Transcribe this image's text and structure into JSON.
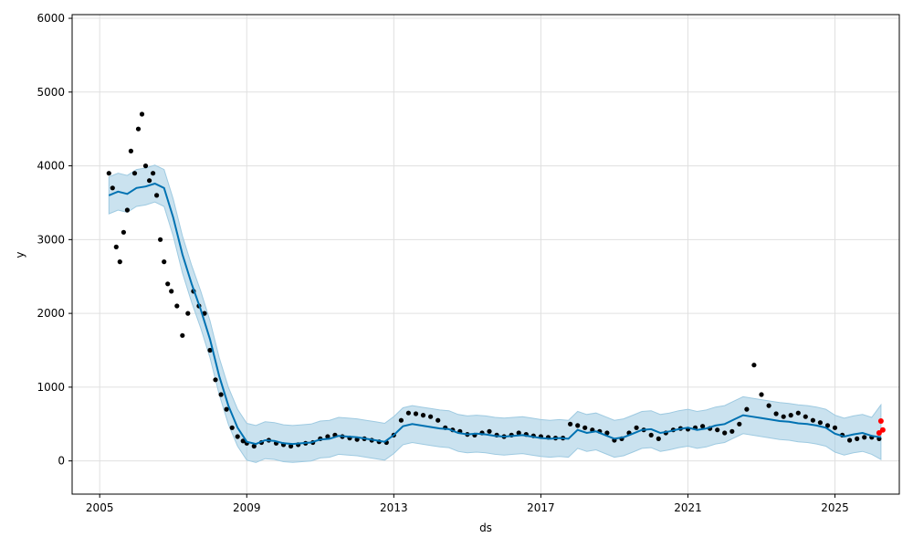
{
  "chart_data": {
    "type": "scatter",
    "title": "",
    "xlabel": "ds",
    "ylabel": "y",
    "xlim": [
      2004.25,
      2026.75
    ],
    "ylim": [
      -450,
      6050
    ],
    "x_ticks": [
      2005,
      2009,
      2013,
      2017,
      2021,
      2025
    ],
    "x_tick_labels": [
      "2005",
      "2009",
      "2013",
      "2017",
      "2021",
      "2025"
    ],
    "y_ticks": [
      0,
      1000,
      2000,
      3000,
      4000,
      5000,
      6000
    ],
    "y_tick_labels": [
      "0",
      "1000",
      "2000",
      "3000",
      "4000",
      "5000",
      "6000"
    ],
    "grid": true,
    "colors": {
      "observed": "#000000",
      "forecast_line": "#0072B2",
      "uncertainty_band": "#9ECAE1",
      "future": "#ff0000",
      "grid": "#e0e0e0"
    },
    "series": [
      {
        "role": "observed",
        "marker": "dot",
        "x": [
          2005.25,
          2005.35,
          2005.45,
          2005.55,
          2005.65,
          2005.75,
          2005.85,
          2005.95,
          2006.05,
          2006.15,
          2006.25,
          2006.35,
          2006.45,
          2006.55,
          2006.65,
          2006.75,
          2006.85,
          2006.95,
          2007.1,
          2007.25,
          2007.4,
          2007.55,
          2007.7,
          2007.85,
          2008.0,
          2008.15,
          2008.3,
          2008.45,
          2008.6,
          2008.75,
          2008.9,
          2009.0,
          2009.2,
          2009.4,
          2009.6,
          2009.8,
          2010.0,
          2010.2,
          2010.4,
          2010.6,
          2010.8,
          2011.0,
          2011.2,
          2011.4,
          2011.6,
          2011.8,
          2012.0,
          2012.2,
          2012.4,
          2012.6,
          2012.8,
          2013.0,
          2013.2,
          2013.4,
          2013.6,
          2013.8,
          2014.0,
          2014.2,
          2014.4,
          2014.6,
          2014.8,
          2015.0,
          2015.2,
          2015.4,
          2015.6,
          2015.8,
          2016.0,
          2016.2,
          2016.4,
          2016.6,
          2016.8,
          2017.0,
          2017.2,
          2017.4,
          2017.6,
          2017.8,
          2018.0,
          2018.2,
          2018.4,
          2018.6,
          2018.8,
          2019.0,
          2019.2,
          2019.4,
          2019.6,
          2019.8,
          2020.0,
          2020.2,
          2020.4,
          2020.6,
          2020.8,
          2021.0,
          2021.2,
          2021.4,
          2021.6,
          2021.8,
          2022.0,
          2022.2,
          2022.4,
          2022.6,
          2022.8,
          2023.0,
          2023.2,
          2023.4,
          2023.6,
          2023.8,
          2024.0,
          2024.2,
          2024.4,
          2024.6,
          2024.8,
          2025.0,
          2025.2,
          2025.4,
          2025.6,
          2025.8,
          2026.0,
          2026.2
        ],
        "values": [
          3900,
          3700,
          2900,
          2700,
          3100,
          3400,
          4200,
          3900,
          4500,
          4700,
          4000,
          3800,
          3900,
          3600,
          3000,
          2700,
          2400,
          2300,
          2100,
          1700,
          2000,
          2300,
          2100,
          2000,
          1500,
          1100,
          900,
          700,
          450,
          330,
          270,
          240,
          200,
          250,
          280,
          240,
          220,
          200,
          220,
          240,
          250,
          300,
          330,
          350,
          330,
          310,
          290,
          300,
          280,
          260,
          250,
          350,
          550,
          650,
          640,
          620,
          600,
          550,
          450,
          420,
          400,
          360,
          350,
          380,
          400,
          350,
          330,
          350,
          380,
          360,
          340,
          330,
          320,
          310,
          310,
          500,
          480,
          450,
          420,
          400,
          380,
          280,
          300,
          380,
          450,
          420,
          350,
          300,
          380,
          420,
          440,
          430,
          450,
          470,
          440,
          420,
          380,
          400,
          500,
          700,
          1300,
          900,
          750,
          640,
          600,
          620,
          650,
          600,
          550,
          520,
          480,
          450,
          350,
          280,
          300,
          320,
          320,
          300
        ]
      },
      {
        "role": "forecast_trend",
        "x": [
          2005.25,
          2005.5,
          2005.75,
          2006.0,
          2006.25,
          2006.5,
          2006.75,
          2007.0,
          2007.25,
          2007.5,
          2007.75,
          2008.0,
          2008.25,
          2008.5,
          2008.75,
          2009.0,
          2009.25,
          2009.5,
          2009.75,
          2010.0,
          2010.25,
          2010.5,
          2010.75,
          2011.0,
          2011.25,
          2011.5,
          2011.75,
          2012.0,
          2012.25,
          2012.5,
          2012.75,
          2013.0,
          2013.25,
          2013.5,
          2013.75,
          2014.0,
          2014.25,
          2014.5,
          2014.75,
          2015.0,
          2015.25,
          2015.5,
          2015.75,
          2016.0,
          2016.25,
          2016.5,
          2016.75,
          2017.0,
          2017.25,
          2017.5,
          2017.75,
          2018.0,
          2018.25,
          2018.5,
          2018.75,
          2019.0,
          2019.25,
          2019.5,
          2019.75,
          2020.0,
          2020.25,
          2020.5,
          2020.75,
          2021.0,
          2021.25,
          2021.5,
          2021.75,
          2022.0,
          2022.25,
          2022.5,
          2022.75,
          2023.0,
          2023.25,
          2023.5,
          2023.75,
          2024.0,
          2024.25,
          2024.5,
          2024.75,
          2025.0,
          2025.25,
          2025.5,
          2025.75,
          2026.0,
          2026.25
        ],
        "values": [
          3600,
          3650,
          3620,
          3700,
          3720,
          3760,
          3700,
          3300,
          2800,
          2400,
          2050,
          1650,
          1150,
          750,
          450,
          260,
          230,
          280,
          270,
          240,
          230,
          240,
          250,
          290,
          300,
          340,
          330,
          320,
          300,
          280,
          260,
          350,
          470,
          500,
          480,
          460,
          440,
          430,
          380,
          360,
          370,
          360,
          340,
          330,
          340,
          350,
          330,
          310,
          300,
          310,
          300,
          420,
          380,
          400,
          350,
          300,
          320,
          370,
          420,
          430,
          380,
          400,
          430,
          450,
          420,
          440,
          480,
          500,
          560,
          620,
          600,
          580,
          560,
          540,
          530,
          510,
          500,
          480,
          450,
          370,
          330,
          360,
          380,
          340,
          320
        ]
      },
      {
        "role": "uncertainty_interval",
        "x": [
          2005.25,
          2005.5,
          2005.75,
          2006.0,
          2006.25,
          2006.5,
          2006.75,
          2007.0,
          2007.25,
          2007.5,
          2007.75,
          2008.0,
          2008.25,
          2008.5,
          2008.75,
          2009.0,
          2009.25,
          2009.5,
          2009.75,
          2010.0,
          2010.25,
          2010.5,
          2010.75,
          2011.0,
          2011.25,
          2011.5,
          2011.75,
          2012.0,
          2012.25,
          2012.5,
          2012.75,
          2013.0,
          2013.25,
          2013.5,
          2013.75,
          2014.0,
          2014.25,
          2014.5,
          2014.75,
          2015.0,
          2015.25,
          2015.5,
          2015.75,
          2016.0,
          2016.25,
          2016.5,
          2016.75,
          2017.0,
          2017.25,
          2017.5,
          2017.75,
          2018.0,
          2018.25,
          2018.5,
          2018.75,
          2019.0,
          2019.25,
          2019.5,
          2019.75,
          2020.0,
          2020.25,
          2020.5,
          2020.75,
          2021.0,
          2021.25,
          2021.5,
          2021.75,
          2022.0,
          2022.25,
          2022.5,
          2022.75,
          2023.0,
          2023.25,
          2023.5,
          2023.75,
          2024.0,
          2024.25,
          2024.5,
          2024.75,
          2025.0,
          2025.25,
          2025.5,
          2025.75,
          2026.0,
          2026.25
        ],
        "lower": [
          3350,
          3400,
          3370,
          3450,
          3470,
          3510,
          3450,
          3050,
          2550,
          2150,
          1800,
          1400,
          900,
          500,
          200,
          10,
          -20,
          30,
          20,
          -10,
          -20,
          -10,
          0,
          40,
          50,
          90,
          80,
          70,
          50,
          30,
          10,
          100,
          220,
          250,
          230,
          210,
          190,
          180,
          130,
          110,
          120,
          110,
          90,
          80,
          90,
          100,
          80,
          60,
          50,
          60,
          50,
          170,
          130,
          150,
          100,
          50,
          70,
          120,
          170,
          180,
          130,
          150,
          180,
          200,
          170,
          190,
          230,
          250,
          310,
          370,
          350,
          330,
          310,
          290,
          280,
          260,
          250,
          230,
          200,
          120,
          80,
          110,
          130,
          90,
          20
        ],
        "upper": [
          3850,
          3900,
          3870,
          3950,
          3970,
          4010,
          3950,
          3550,
          3050,
          2650,
          2300,
          1900,
          1400,
          1000,
          700,
          510,
          480,
          530,
          520,
          490,
          480,
          490,
          500,
          540,
          550,
          590,
          580,
          570,
          550,
          530,
          510,
          600,
          720,
          750,
          730,
          710,
          690,
          680,
          630,
          610,
          620,
          610,
          590,
          580,
          590,
          600,
          580,
          560,
          550,
          560,
          550,
          670,
          630,
          650,
          600,
          550,
          570,
          620,
          670,
          680,
          630,
          650,
          680,
          700,
          670,
          690,
          730,
          750,
          810,
          870,
          850,
          830,
          810,
          790,
          780,
          760,
          750,
          730,
          700,
          620,
          580,
          610,
          630,
          590,
          760
        ]
      },
      {
        "role": "future",
        "marker": "dot",
        "x": [
          2026.2,
          2026.25,
          2026.3
        ],
        "values": [
          380,
          540,
          420
        ]
      }
    ]
  }
}
